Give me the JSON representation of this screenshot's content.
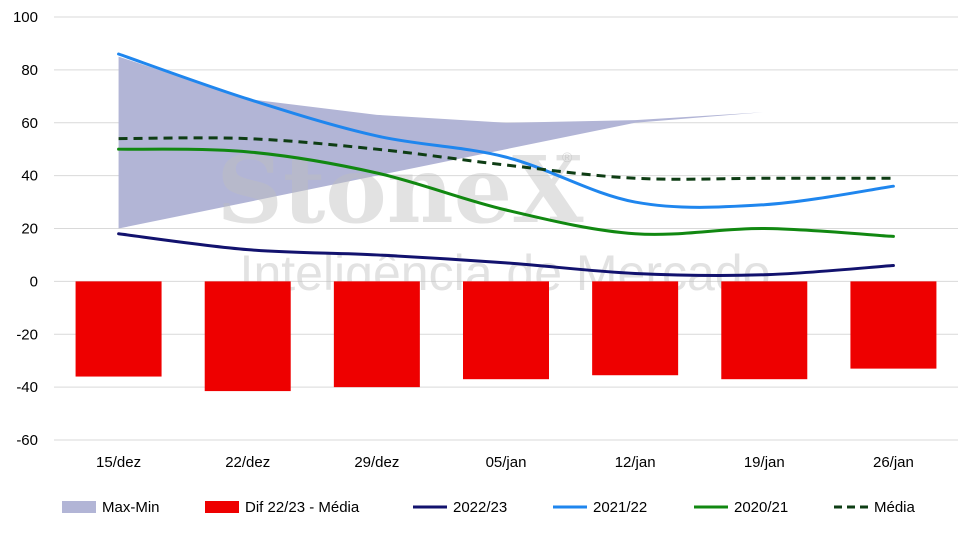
{
  "chart_data": {
    "type": "bar",
    "categories": [
      "15/dez",
      "22/dez",
      "29/dez",
      "05/jan",
      "12/jan",
      "19/jan",
      "26/jan"
    ],
    "ylim": [
      -60,
      100
    ],
    "yticks": [
      100,
      80,
      60,
      40,
      20,
      0,
      -20,
      -40,
      -60
    ],
    "grid": true,
    "legend_position": "bottom",
    "band": {
      "name": "Max-Min",
      "color": "#b2b5d6",
      "max": [
        85,
        69,
        63,
        60,
        61,
        64,
        68
      ],
      "min": [
        20,
        30,
        40,
        50,
        60,
        64,
        68
      ]
    },
    "bars": {
      "name": "Dif 22/23 - Média",
      "color": "#ee0000",
      "values": [
        -36,
        -41.5,
        -40,
        -37,
        -35.5,
        -37,
        -33
      ]
    },
    "series": [
      {
        "name": "2022/23",
        "color": "#12126e",
        "style": "solid",
        "values": [
          18,
          12,
          10,
          7,
          3,
          2.5,
          6
        ]
      },
      {
        "name": "2021/22",
        "color": "#1f86ee",
        "style": "solid",
        "values": [
          86,
          69,
          55,
          47,
          30,
          29,
          36
        ]
      },
      {
        "name": "2020/21",
        "color": "#118811",
        "style": "solid",
        "values": [
          50,
          49,
          41,
          27,
          18,
          20,
          17
        ]
      },
      {
        "name": "Média",
        "color": "#0e3d14",
        "style": "dashed",
        "values": [
          54,
          54,
          50,
          44,
          39,
          39,
          39
        ]
      }
    ]
  },
  "watermark": {
    "brand": "StoneX",
    "registered": "®",
    "tagline": "Inteligência de Mercado"
  }
}
